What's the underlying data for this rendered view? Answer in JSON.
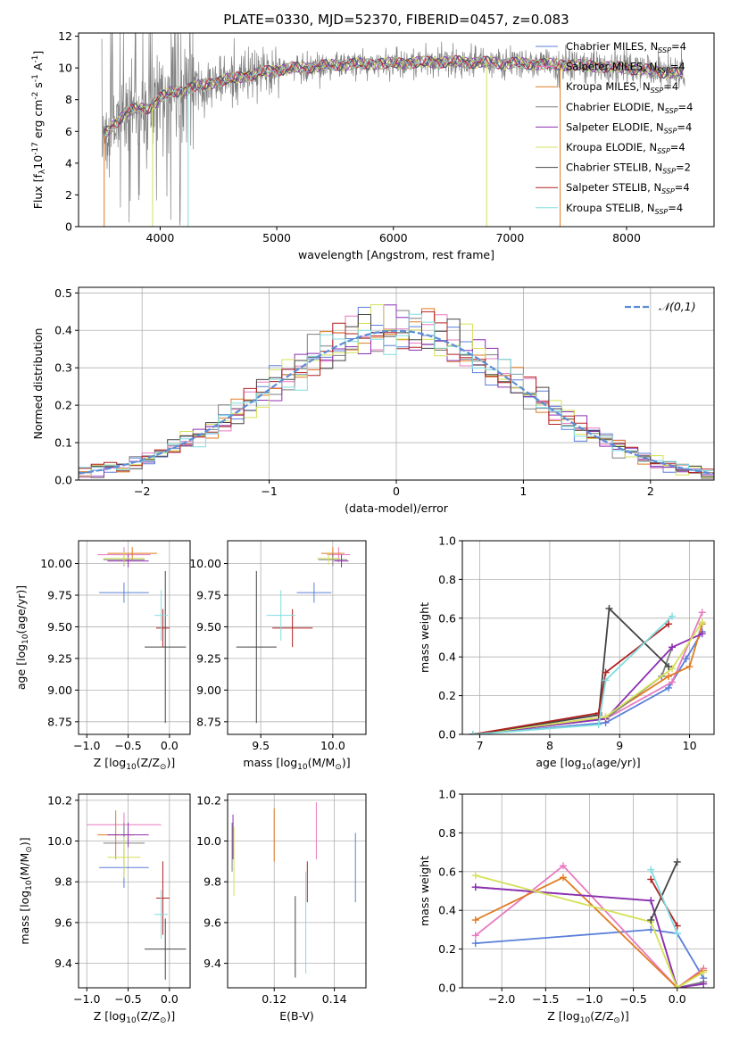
{
  "suptitle": "PLATE=0330, MJD=52370, FIBERID=0457, z=0.083",
  "colors": {
    "Chabrier MILES": "#5b7fd9",
    "Salpeter MILES": "#e879c0",
    "Kroupa MILES": "#e07b22",
    "Chabrier ELODIE": "#7f7f7f",
    "Salpeter ELODIE": "#8e2fb3",
    "Kroupa ELODIE": "#d4e157",
    "Chabrier STELIB": "#444444",
    "Salpeter STELIB": "#b22222",
    "Kroupa STELIB": "#7fdde0",
    "data": "#808080",
    "normal": "#5b8ed6"
  },
  "chart_data": [
    {
      "id": "spectrum",
      "type": "line",
      "title": "",
      "xlabel": "wavelength [Angstrom, rest frame]",
      "ylabel": "Flux [f$_\\lambda$10$^{-17}$ erg cm$^{-2}$ s$^{-1}$ A$^{-1}$]",
      "xlim": [
        3300,
        8750
      ],
      "ylim": [
        0,
        12.2
      ],
      "xticks": [
        4000,
        5000,
        6000,
        7000,
        8000
      ],
      "yticks": [
        0,
        2,
        4,
        6,
        8,
        10,
        12
      ],
      "legend_position": "top-right",
      "legend": [
        {
          "name": "Chabrier MILES",
          "label": "Chabrier MILES, N",
          "sub": "SSP",
          "tail": "=4"
        },
        {
          "name": "Salpeter MILES",
          "label": "Salpeter MILES, N",
          "sub": "SSP",
          "tail": "=4"
        },
        {
          "name": "Kroupa MILES",
          "label": "Kroupa MILES, N",
          "sub": "SSP",
          "tail": "=4"
        },
        {
          "name": "Chabrier ELODIE",
          "label": "Chabrier ELODIE, N",
          "sub": "SSP",
          "tail": "=4"
        },
        {
          "name": "Salpeter ELODIE",
          "label": "Salpeter ELODIE, N",
          "sub": "SSP",
          "tail": "=4"
        },
        {
          "name": "Kroupa ELODIE",
          "label": "Kroupa ELODIE, N",
          "sub": "SSP",
          "tail": "=4"
        },
        {
          "name": "Chabrier STELIB",
          "label": "Chabrier STELIB, N",
          "sub": "SSP",
          "tail": "=2"
        },
        {
          "name": "Salpeter STELIB",
          "label": "Salpeter STELIB, N",
          "sub": "SSP",
          "tail": "=4"
        },
        {
          "name": "Kroupa STELIB",
          "label": "Kroupa STELIB, N",
          "sub": "SSP",
          "tail": "=4"
        }
      ],
      "continuum": [
        [
          3500,
          5.6
        ],
        [
          3600,
          6.4
        ],
        [
          3700,
          7.2
        ],
        [
          3800,
          7.4
        ],
        [
          3900,
          7.5
        ],
        [
          4000,
          8.1
        ],
        [
          4100,
          8.5
        ],
        [
          4200,
          8.6
        ],
        [
          4300,
          8.8
        ],
        [
          4400,
          9.0
        ],
        [
          4600,
          9.3
        ],
        [
          4800,
          9.6
        ],
        [
          5000,
          9.9
        ],
        [
          5200,
          10.0
        ],
        [
          5500,
          10.2
        ],
        [
          6000,
          10.3
        ],
        [
          6500,
          10.4
        ],
        [
          7000,
          10.3
        ],
        [
          7500,
          10.2
        ],
        [
          8000,
          10.0
        ],
        [
          8500,
          9.6
        ]
      ],
      "model_spikes": [
        [
          3520,
          "Kroupa MILES"
        ],
        [
          3935,
          "Kroupa ELODIE"
        ],
        [
          4240,
          "Kroupa STELIB"
        ],
        [
          6800,
          "Kroupa ELODIE"
        ],
        [
          7430,
          "Kroupa MILES"
        ]
      ]
    },
    {
      "id": "residuals",
      "type": "step-histogram",
      "title": "",
      "xlabel": "(data-model)/error",
      "ylabel": "Normed distribution",
      "xlim": [
        -2.5,
        2.5
      ],
      "ylim": [
        0,
        0.515
      ],
      "xticks": [
        -2,
        -1,
        0,
        1,
        2
      ],
      "yticks": [
        0.0,
        0.1,
        0.2,
        0.3,
        0.4,
        0.5
      ],
      "grid": true,
      "legend_position": "top-right",
      "legend": "$\\mathcal{N}(0,1)$",
      "bin_width": 0.1,
      "reference_curve": "N(0,1)"
    },
    {
      "id": "age_Z",
      "type": "errorbar",
      "xlabel": "Z [log$_{10}$(Z/Z$_\\odot$)]",
      "ylabel": "age  [log$_{10}$(age/yr)]",
      "xlim": [
        -1.1,
        0.25
      ],
      "ylim": [
        8.65,
        10.18
      ],
      "xticks": [
        -1.0,
        -0.5,
        0.0
      ],
      "yticks": [
        8.75,
        9.0,
        9.25,
        9.5,
        9.75,
        10.0
      ],
      "grid": true,
      "points": [
        {
          "series": "Chabrier MILES",
          "x": -0.55,
          "xerr": 0.3,
          "y": 9.77,
          "yerr": 0.08
        },
        {
          "series": "Salpeter MILES",
          "x": -0.55,
          "xerr": 0.32,
          "y": 10.07,
          "yerr": 0.06
        },
        {
          "series": "Kroupa MILES",
          "x": -0.45,
          "xerr": 0.3,
          "y": 10.08,
          "yerr": 0.05
        },
        {
          "series": "Chabrier ELODIE",
          "x": -0.55,
          "xerr": 0.25,
          "y": 10.03,
          "yerr": 0.05
        },
        {
          "series": "Salpeter ELODIE",
          "x": -0.5,
          "xerr": 0.25,
          "y": 10.02,
          "yerr": 0.05
        },
        {
          "series": "Kroupa ELODIE",
          "x": -0.55,
          "xerr": 0.25,
          "y": 10.04,
          "yerr": 0.05
        },
        {
          "series": "Chabrier STELIB",
          "x": -0.05,
          "xerr": 0.25,
          "y": 9.34,
          "yerr": 0.6
        },
        {
          "series": "Salpeter STELIB",
          "x": -0.08,
          "xerr": 0.08,
          "y": 9.49,
          "yerr": 0.15
        },
        {
          "series": "Kroupa STELIB",
          "x": -0.1,
          "xerr": 0.08,
          "y": 9.59,
          "yerr": 0.2
        }
      ]
    },
    {
      "id": "age_mass",
      "type": "errorbar",
      "xlabel": "mass [log$_{10}$(M/M$_\\odot$)]",
      "ylabel": "",
      "xlim": [
        9.27,
        10.23
      ],
      "ylim": [
        8.65,
        10.18
      ],
      "xticks": [
        9.5,
        10.0
      ],
      "yticks": [
        8.75,
        9.0,
        9.25,
        9.5,
        9.75,
        10.0
      ],
      "grid": true,
      "points": [
        {
          "series": "Chabrier MILES",
          "x": 9.87,
          "xerr": 0.12,
          "y": 9.77,
          "yerr": 0.08
        },
        {
          "series": "Salpeter MILES",
          "x": 10.04,
          "xerr": 0.08,
          "y": 10.07,
          "yerr": 0.06
        },
        {
          "series": "Kroupa MILES",
          "x": 10.0,
          "xerr": 0.08,
          "y": 10.08,
          "yerr": 0.05
        },
        {
          "series": "Chabrier ELODIE",
          "x": 10.0,
          "xerr": 0.1,
          "y": 10.03,
          "yerr": 0.05
        },
        {
          "series": "Salpeter ELODIE",
          "x": 10.06,
          "xerr": 0.05,
          "y": 10.02,
          "yerr": 0.05
        },
        {
          "series": "Kroupa ELODIE",
          "x": 9.97,
          "xerr": 0.08,
          "y": 10.04,
          "yerr": 0.05
        },
        {
          "series": "Chabrier STELIB",
          "x": 9.47,
          "xerr": 0.14,
          "y": 9.34,
          "yerr": 0.6
        },
        {
          "series": "Salpeter STELIB",
          "x": 9.72,
          "xerr": 0.14,
          "y": 9.49,
          "yerr": 0.15
        },
        {
          "series": "Kroupa STELIB",
          "x": 9.64,
          "xerr": 0.1,
          "y": 9.59,
          "yerr": 0.2
        }
      ]
    },
    {
      "id": "mass_Z",
      "type": "errorbar",
      "xlabel": "Z [log$_{10}$(Z/Z$_\\odot$)]",
      "ylabel": "mass [log$_{10}$(M/M$_\\odot$)]",
      "xlim": [
        -1.1,
        0.25
      ],
      "ylim": [
        9.28,
        10.23
      ],
      "xticks": [
        -1.0,
        -0.5,
        0.0
      ],
      "yticks": [
        9.4,
        9.6,
        9.8,
        10.0,
        10.2
      ],
      "grid": true,
      "points": [
        {
          "series": "Chabrier MILES",
          "x": -0.55,
          "xerr": 0.3,
          "y": 9.87,
          "yerr": 0.1
        },
        {
          "series": "Salpeter MILES",
          "x": -0.55,
          "xerr": 0.45,
          "y": 10.08,
          "yerr": 0.06
        },
        {
          "series": "Kroupa MILES",
          "x": -0.65,
          "xerr": 0.22,
          "y": 10.03,
          "yerr": 0.12
        },
        {
          "series": "Chabrier ELODIE",
          "x": -0.55,
          "xerr": 0.25,
          "y": 9.99,
          "yerr": 0.1
        },
        {
          "series": "Salpeter ELODIE",
          "x": -0.5,
          "xerr": 0.25,
          "y": 10.03,
          "yerr": 0.06
        },
        {
          "series": "Kroupa ELODIE",
          "x": -0.55,
          "xerr": 0.2,
          "y": 9.92,
          "yerr": 0.1
        },
        {
          "series": "Chabrier STELIB",
          "x": -0.05,
          "xerr": 0.25,
          "y": 9.47,
          "yerr": 0.15
        },
        {
          "series": "Salpeter STELIB",
          "x": -0.08,
          "xerr": 0.08,
          "y": 9.72,
          "yerr": 0.18
        },
        {
          "series": "Kroupa STELIB",
          "x": -0.1,
          "xerr": 0.08,
          "y": 9.64,
          "yerr": 0.12
        }
      ]
    },
    {
      "id": "mass_ebv",
      "type": "errorbar",
      "xlabel": "E(B-V)",
      "ylabel": "",
      "xlim": [
        0.1045,
        0.1505
      ],
      "ylim": [
        9.28,
        10.23
      ],
      "xticks": [
        0.12,
        0.14
      ],
      "yticks": [
        9.4,
        9.6,
        9.8,
        10.0,
        10.2
      ],
      "grid": true,
      "points": [
        {
          "series": "Chabrier MILES",
          "x": 0.147,
          "y": 9.87,
          "yerr": 0.17
        },
        {
          "series": "Salpeter MILES",
          "x": 0.134,
          "y": 10.05,
          "yerr": 0.14
        },
        {
          "series": "Kroupa MILES",
          "x": 0.12,
          "y": 10.03,
          "yerr": 0.13
        },
        {
          "series": "Chabrier ELODIE",
          "x": 0.106,
          "y": 9.97,
          "yerr": 0.12
        },
        {
          "series": "Salpeter ELODIE",
          "x": 0.1063,
          "y": 10.02,
          "yerr": 0.11
        },
        {
          "series": "Kroupa ELODIE",
          "x": 0.1066,
          "y": 9.9,
          "yerr": 0.17
        },
        {
          "series": "Chabrier STELIB",
          "x": 0.127,
          "y": 9.53,
          "yerr": 0.2
        },
        {
          "series": "Salpeter STELIB",
          "x": 0.131,
          "y": 9.8,
          "yerr": 0.1
        },
        {
          "series": "Kroupa STELIB",
          "x": 0.1305,
          "y": 9.6,
          "yerr": 0.25
        }
      ]
    },
    {
      "id": "weight_age",
      "type": "line",
      "xlabel": "age  [log$_{10}$(age/yr)]",
      "ylabel": "mass weight",
      "xlim": [
        6.75,
        10.35
      ],
      "ylim": [
        0,
        1.0
      ],
      "xticks": [
        7,
        8,
        9,
        10
      ],
      "yticks": [
        0.0,
        0.2,
        0.4,
        0.6,
        0.8,
        1.0
      ],
      "grid": true,
      "series": [
        {
          "name": "Chabrier MILES",
          "x": [
            6.9,
            8.8,
            9.7,
            9.95,
            10.18
          ],
          "y": [
            0.0,
            0.06,
            0.24,
            0.39,
            0.53
          ]
        },
        {
          "name": "Salpeter MILES",
          "x": [
            6.9,
            8.8,
            9.75,
            10.18
          ],
          "y": [
            0.0,
            0.08,
            0.27,
            0.63
          ]
        },
        {
          "name": "Kroupa MILES",
          "x": [
            6.9,
            8.8,
            9.7,
            10.0,
            10.18
          ],
          "y": [
            0.0,
            0.09,
            0.3,
            0.35,
            0.57
          ]
        },
        {
          "name": "Chabrier ELODIE",
          "x": [
            6.9,
            8.8,
            9.6,
            9.75
          ],
          "y": [
            0.0,
            0.08,
            0.3,
            0.45
          ]
        },
        {
          "name": "Salpeter ELODIE",
          "x": [
            6.9,
            8.8,
            9.75,
            10.18
          ],
          "y": [
            0.0,
            0.08,
            0.45,
            0.52
          ]
        },
        {
          "name": "Kroupa ELODIE",
          "x": [
            6.9,
            8.8,
            9.75,
            10.18
          ],
          "y": [
            0.0,
            0.09,
            0.34,
            0.58
          ]
        },
        {
          "name": "Chabrier STELIB",
          "x": [
            6.9,
            8.7,
            8.85,
            9.7
          ],
          "y": [
            0.0,
            0.1,
            0.65,
            0.35
          ]
        },
        {
          "name": "Salpeter STELIB",
          "x": [
            6.9,
            8.7,
            8.8,
            9.7
          ],
          "y": [
            0.0,
            0.11,
            0.32,
            0.57
          ]
        },
        {
          "name": "Kroupa STELIB",
          "x": [
            6.9,
            8.7,
            8.8,
            9.75
          ],
          "y": [
            0.0,
            0.05,
            0.28,
            0.61
          ]
        }
      ]
    },
    {
      "id": "weight_Z",
      "type": "line",
      "xlabel": "Z [log$_{10}$(Z/Z$_\\odot$)]",
      "ylabel": "mass weight",
      "xlim": [
        -2.45,
        0.42
      ],
      "ylim": [
        0,
        1.0
      ],
      "xticks": [
        -2.0,
        -1.5,
        -1.0,
        -0.5,
        0.0
      ],
      "yticks": [
        0.0,
        0.2,
        0.4,
        0.6,
        0.8,
        1.0
      ],
      "grid": true,
      "series": [
        {
          "name": "Chabrier MILES",
          "x": [
            -2.3,
            -0.3,
            0.0,
            0.3
          ],
          "y": [
            0.23,
            0.3,
            0.28,
            0.05
          ]
        },
        {
          "name": "Salpeter MILES",
          "x": [
            -2.3,
            -1.3,
            0.0,
            0.3
          ],
          "y": [
            0.27,
            0.63,
            0.0,
            0.1
          ]
        },
        {
          "name": "Kroupa MILES",
          "x": [
            -2.3,
            -1.3,
            0.0,
            0.3
          ],
          "y": [
            0.35,
            0.57,
            0.0,
            0.09
          ]
        },
        {
          "name": "Chabrier ELODIE",
          "x": [
            -2.3,
            -0.3,
            0.0,
            0.3
          ],
          "y": [
            0.52,
            0.45,
            0.0,
            0.03
          ]
        },
        {
          "name": "Salpeter ELODIE",
          "x": [
            -2.3,
            -0.3,
            0.0,
            0.3
          ],
          "y": [
            0.52,
            0.45,
            0.0,
            0.02
          ]
        },
        {
          "name": "Kroupa ELODIE",
          "x": [
            -2.3,
            -0.3,
            0.0,
            0.3
          ],
          "y": [
            0.58,
            0.34,
            0.0,
            0.08
          ]
        },
        {
          "name": "Chabrier STELIB",
          "x": [
            -0.3,
            0.0
          ],
          "y": [
            0.35,
            0.65
          ]
        },
        {
          "name": "Salpeter STELIB",
          "x": [
            -0.3,
            0.0
          ],
          "y": [
            0.56,
            0.32
          ]
        },
        {
          "name": "Kroupa STELIB",
          "x": [
            -0.3,
            0.0
          ],
          "y": [
            0.61,
            0.28
          ]
        }
      ]
    }
  ]
}
